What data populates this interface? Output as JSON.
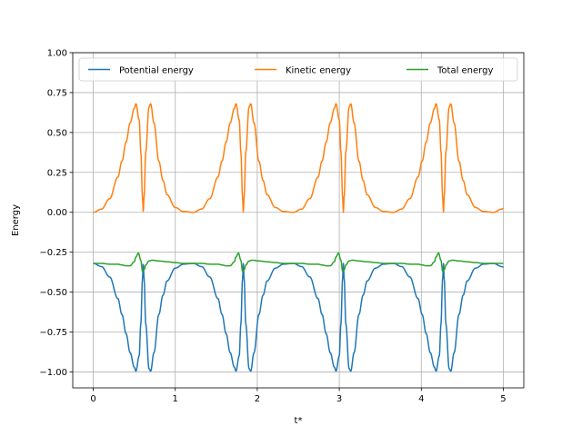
{
  "chart_data": {
    "type": "line",
    "title": "",
    "xlabel": "t*",
    "ylabel": "Energy",
    "xlim": [
      -0.25,
      5.25
    ],
    "ylim": [
      -1.1,
      1.0
    ],
    "xticks": [
      0,
      1,
      2,
      3,
      4,
      5
    ],
    "xtick_labels": [
      "0",
      "1",
      "2",
      "3",
      "4",
      "5"
    ],
    "yticks": [
      -1.0,
      -0.75,
      -0.5,
      -0.25,
      0.0,
      0.25,
      0.5,
      0.75,
      1.0
    ],
    "ytick_labels": [
      "−1.00",
      "−0.75",
      "−0.50",
      "−0.25",
      "0.00",
      "0.25",
      "0.50",
      "0.75",
      "1.00"
    ],
    "grid": true,
    "legend_position": "top",
    "period": 1.22,
    "series": [
      {
        "name": "Potential energy",
        "color": "#1f77b4",
        "x": [
          0,
          0.1,
          0.2,
          0.3,
          0.35,
          0.4,
          0.45,
          0.5,
          0.52,
          0.56,
          0.58,
          0.6,
          0.61,
          0.62,
          0.64,
          0.68,
          0.7,
          0.74,
          0.8,
          0.85,
          0.9,
          1.0,
          1.1,
          1.22
        ],
        "values": [
          -0.32,
          -0.34,
          -0.405,
          -0.54,
          -0.64,
          -0.76,
          -0.88,
          -0.97,
          -0.995,
          -0.9,
          -0.7,
          -0.42,
          -0.32,
          -0.42,
          -0.7,
          -0.98,
          -0.995,
          -0.88,
          -0.64,
          -0.52,
          -0.43,
          -0.35,
          -0.325,
          -0.32
        ]
      },
      {
        "name": "Kinetic energy",
        "color": "#ff7f0e",
        "x": [
          0,
          0.1,
          0.2,
          0.3,
          0.35,
          0.4,
          0.45,
          0.5,
          0.52,
          0.56,
          0.58,
          0.6,
          0.61,
          0.62,
          0.64,
          0.68,
          0.7,
          0.74,
          0.8,
          0.85,
          0.9,
          1.0,
          1.1,
          1.22
        ],
        "values": [
          0.0,
          0.02,
          0.085,
          0.22,
          0.32,
          0.44,
          0.56,
          0.65,
          0.68,
          0.58,
          0.38,
          0.1,
          0.0,
          0.1,
          0.38,
          0.66,
          0.68,
          0.56,
          0.32,
          0.2,
          0.11,
          0.03,
          0.005,
          0.0
        ]
      },
      {
        "name": "Total energy",
        "color": "#2ca02c",
        "x": [
          0,
          0.1,
          0.2,
          0.3,
          0.35,
          0.4,
          0.45,
          0.5,
          0.52,
          0.55,
          0.58,
          0.6,
          0.62,
          0.64,
          0.68,
          0.72,
          0.8,
          0.9,
          1.0,
          1.1,
          1.22
        ],
        "values": [
          -0.32,
          -0.32,
          -0.325,
          -0.325,
          -0.33,
          -0.335,
          -0.335,
          -0.31,
          -0.28,
          -0.255,
          -0.3,
          -0.37,
          -0.36,
          -0.33,
          -0.305,
          -0.3,
          -0.305,
          -0.31,
          -0.315,
          -0.32,
          -0.32
        ]
      }
    ]
  }
}
